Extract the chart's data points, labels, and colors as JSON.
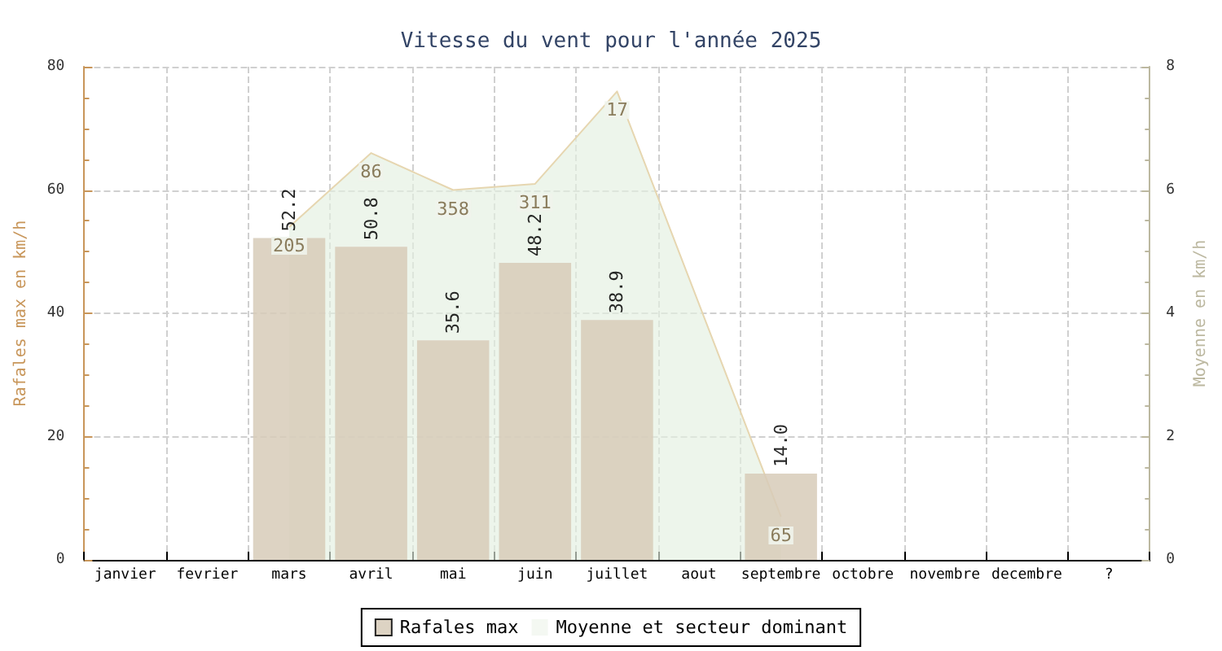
{
  "chart_data": {
    "type": "bar",
    "title": "Vitesse du vent pour l'année 2025",
    "categories": [
      "janvier",
      "fevrier",
      "mars",
      "avril",
      "mai",
      "juin",
      "juillet",
      "aout",
      "septembre",
      "octobre",
      "novembre",
      "decembre",
      "?"
    ],
    "series": [
      {
        "name": "Rafales max",
        "color": "#d7cbb9",
        "values": [
          null,
          null,
          52.2,
          50.8,
          35.6,
          48.2,
          38.9,
          null,
          14.0,
          null,
          null,
          null,
          null
        ],
        "value_labels": [
          null,
          null,
          "52.2",
          "50.8",
          "35.6",
          "48.2",
          "38.9",
          null,
          "14.0",
          null,
          null,
          null,
          null
        ]
      },
      {
        "name": "Moyenne et secteur dominant",
        "type": "area",
        "axis": "y2",
        "color": "#e6d6b0",
        "values": [
          null,
          null,
          5.4,
          6.6,
          6.0,
          6.1,
          7.6,
          null,
          0.7,
          null,
          null,
          null,
          null
        ]
      }
    ],
    "annotations": [
      "205",
      "86",
      "358",
      "311",
      "17",
      "65"
    ],
    "ylabel": "Rafales max en km/h",
    "y2label": "Moyenne en km/h",
    "ylim": [
      0,
      80
    ],
    "yticks": [
      0,
      20,
      40,
      60,
      80
    ],
    "y2lim": [
      0,
      8
    ],
    "y2ticks": [
      0,
      2,
      4,
      6,
      8
    ],
    "grid": true,
    "legend": "bottom"
  }
}
